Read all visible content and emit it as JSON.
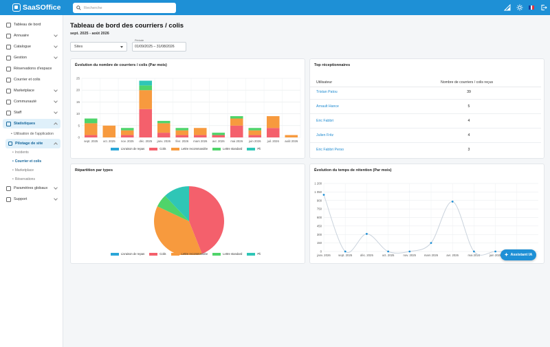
{
  "app": {
    "name": "SaaSOffice"
  },
  "search": {
    "placeholder": "Recherche"
  },
  "colors": {
    "accent": "#1e90d6",
    "livraison": "#2aa6d8",
    "colis": "#f4606c",
    "recommandee": "#f79a3e",
    "standard": "#4fd46a",
    "pli": "#2fc6b6"
  },
  "icons": {
    "lang": "flag-fr-icon",
    "theme": "sun-icon",
    "notif": "signal-icon",
    "logout": "logout-icon"
  },
  "sidebar": {
    "items": [
      {
        "label": "Tableau de bord",
        "icon": "home-icon"
      },
      {
        "label": "Annuaire",
        "icon": "directory-icon"
      },
      {
        "label": "Catalogue",
        "icon": "catalog-icon"
      },
      {
        "label": "Gestion",
        "icon": "gear-icon"
      },
      {
        "label": "Réservations d'espace",
        "icon": "calendar-icon"
      },
      {
        "label": "Courrier et colis",
        "icon": "mail-icon"
      },
      {
        "label": "Marketplace",
        "icon": "cart-icon"
      },
      {
        "label": "Communauté",
        "icon": "users-icon"
      },
      {
        "label": "Staff",
        "icon": "staff-icon"
      },
      {
        "label": "Statistiques",
        "icon": "chart-icon"
      }
    ],
    "stat_sub": {
      "usage": "Utilisation de l'application",
      "pilotage": "Pilotage de site"
    },
    "leaves": [
      "Incidents",
      "Courrier et colis",
      "Marketplace",
      "Réservations"
    ],
    "bottom": [
      {
        "label": "Paramètres globaux",
        "icon": "settings-icon"
      },
      {
        "label": "Support",
        "icon": "support-icon"
      }
    ]
  },
  "page": {
    "title": "Tableau de bord des courriers / colis",
    "subtitle": "sept. 2025 - août 2026",
    "site_select": "Sites",
    "period_label": "Période",
    "period_value": "01/09/2025 – 31/08/2026"
  },
  "bar_card": {
    "title": "Évolution du nombre de courriers / colis (Par mois)"
  },
  "top_card": {
    "title": "Top réceptionnaires",
    "col_user": "Utilisateur",
    "col_count": "Nombre de courriers / colis reçus",
    "rows": [
      {
        "name": "Tristan Patou",
        "count": "39"
      },
      {
        "name": "Arnault Hance",
        "count": "5"
      },
      {
        "name": "Eric Fabbri",
        "count": "4"
      },
      {
        "name": "Julien Fritz",
        "count": "4"
      },
      {
        "name": "Eric Fabbri Perso",
        "count": "3"
      }
    ]
  },
  "pie_card": {
    "title": "Répartition par types"
  },
  "line_card": {
    "title": "Évolution du temps de rétention (Par mois)"
  },
  "ai_button": {
    "label": "Assistant IA"
  },
  "chart_data": [
    {
      "type": "bar",
      "stacked": true,
      "title": "Évolution du nombre de courriers / colis (Par mois)",
      "categories": [
        "sept. 2025",
        "oct. 2025",
        "nov. 2025",
        "déc. 2025",
        "janv. 2026",
        "févr. 2026",
        "mars 2026",
        "avr. 2026",
        "mai 2026",
        "juin 2026",
        "juil. 2026",
        "août 2026"
      ],
      "series": [
        {
          "name": "Livraison de repas",
          "values": [
            0,
            0,
            0,
            0,
            0,
            0,
            0,
            0,
            0,
            0,
            0,
            0
          ]
        },
        {
          "name": "Colis",
          "values": [
            1,
            0,
            1,
            12,
            2,
            1,
            1,
            1,
            5,
            1,
            4,
            0
          ]
        },
        {
          "name": "Lettre recommandée",
          "values": [
            5,
            5,
            2,
            8,
            4,
            2,
            3,
            0,
            3,
            2,
            5,
            1
          ]
        },
        {
          "name": "Lettre standard",
          "values": [
            2,
            0,
            1,
            2,
            1,
            1,
            0,
            1,
            1,
            1,
            0,
            0
          ]
        },
        {
          "name": "Pli",
          "values": [
            0,
            0,
            0,
            2,
            0,
            0,
            0,
            0,
            0,
            0,
            0,
            0
          ]
        }
      ],
      "ylim": [
        0,
        25
      ],
      "yticks": [
        0,
        5,
        10,
        15,
        20,
        25
      ],
      "legend": "bottom",
      "grid": true
    },
    {
      "type": "pie",
      "title": "Répartition par types",
      "labels": [
        "Livraison de repas",
        "Colis",
        "Lettre recommandée",
        "Lettre standard",
        "Pli"
      ],
      "values": [
        0,
        44,
        38,
        6,
        12
      ],
      "legend": "bottom"
    },
    {
      "type": "line",
      "title": "Évolution du temps de rétention (Par mois)",
      "categories": [
        "janv. 2026",
        "sept. 2025",
        "déc. 2025",
        "oct. 2025",
        "nov. 2025",
        "mars 2026",
        "avr. 2026",
        "mai 2026",
        "juin 2026",
        "févr. 2026"
      ],
      "values": [
        1000,
        0,
        310,
        0,
        0,
        150,
        880,
        0,
        0,
        0
      ],
      "ylim": [
        0,
        1200
      ],
      "yticks": [
        0,
        150,
        300,
        450,
        600,
        750,
        900,
        1050,
        1200
      ],
      "ytick_labels": [
        "0",
        "150",
        "300",
        "450",
        "600",
        "750",
        "900",
        "1 050",
        "1 200"
      ],
      "curve": "smooth",
      "grid": true
    }
  ]
}
